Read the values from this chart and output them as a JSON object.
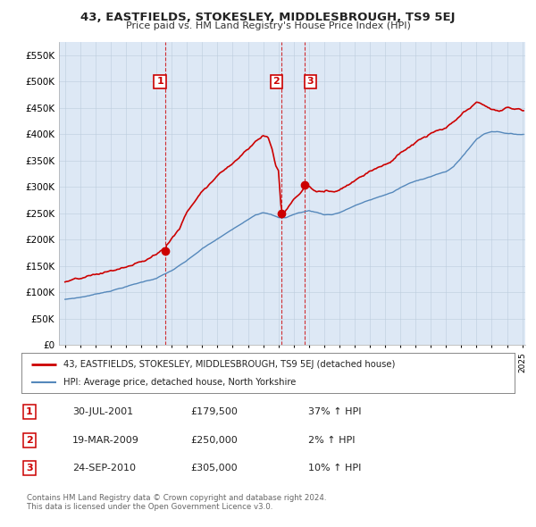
{
  "title": "43, EASTFIELDS, STOKESLEY, MIDDLESBROUGH, TS9 5EJ",
  "subtitle": "Price paid vs. HM Land Registry's House Price Index (HPI)",
  "legend_entry1": "43, EASTFIELDS, STOKESLEY, MIDDLESBROUGH, TS9 5EJ (detached house)",
  "legend_entry2": "HPI: Average price, detached house, North Yorkshire",
  "sale1_date": "30-JUL-2001",
  "sale1_price": 179500,
  "sale1_hpi": "37% ↑ HPI",
  "sale2_date": "19-MAR-2009",
  "sale2_price": 250000,
  "sale2_hpi": "2% ↑ HPI",
  "sale3_date": "24-SEP-2010",
  "sale3_price": 305000,
  "sale3_hpi": "10% ↑ HPI",
  "footer1": "Contains HM Land Registry data © Crown copyright and database right 2024.",
  "footer2": "This data is licensed under the Open Government Licence v3.0.",
  "red_color": "#cc0000",
  "blue_color": "#5588bb",
  "chart_bg": "#dde8f5",
  "background_color": "#ffffff",
  "ylim": [
    0,
    575000
  ],
  "yticks": [
    0,
    50000,
    100000,
    150000,
    200000,
    250000,
    300000,
    350000,
    400000,
    450000,
    500000,
    550000
  ],
  "sale1_year": 2001.58,
  "sale2_year": 2009.22,
  "sale3_year": 2010.73
}
